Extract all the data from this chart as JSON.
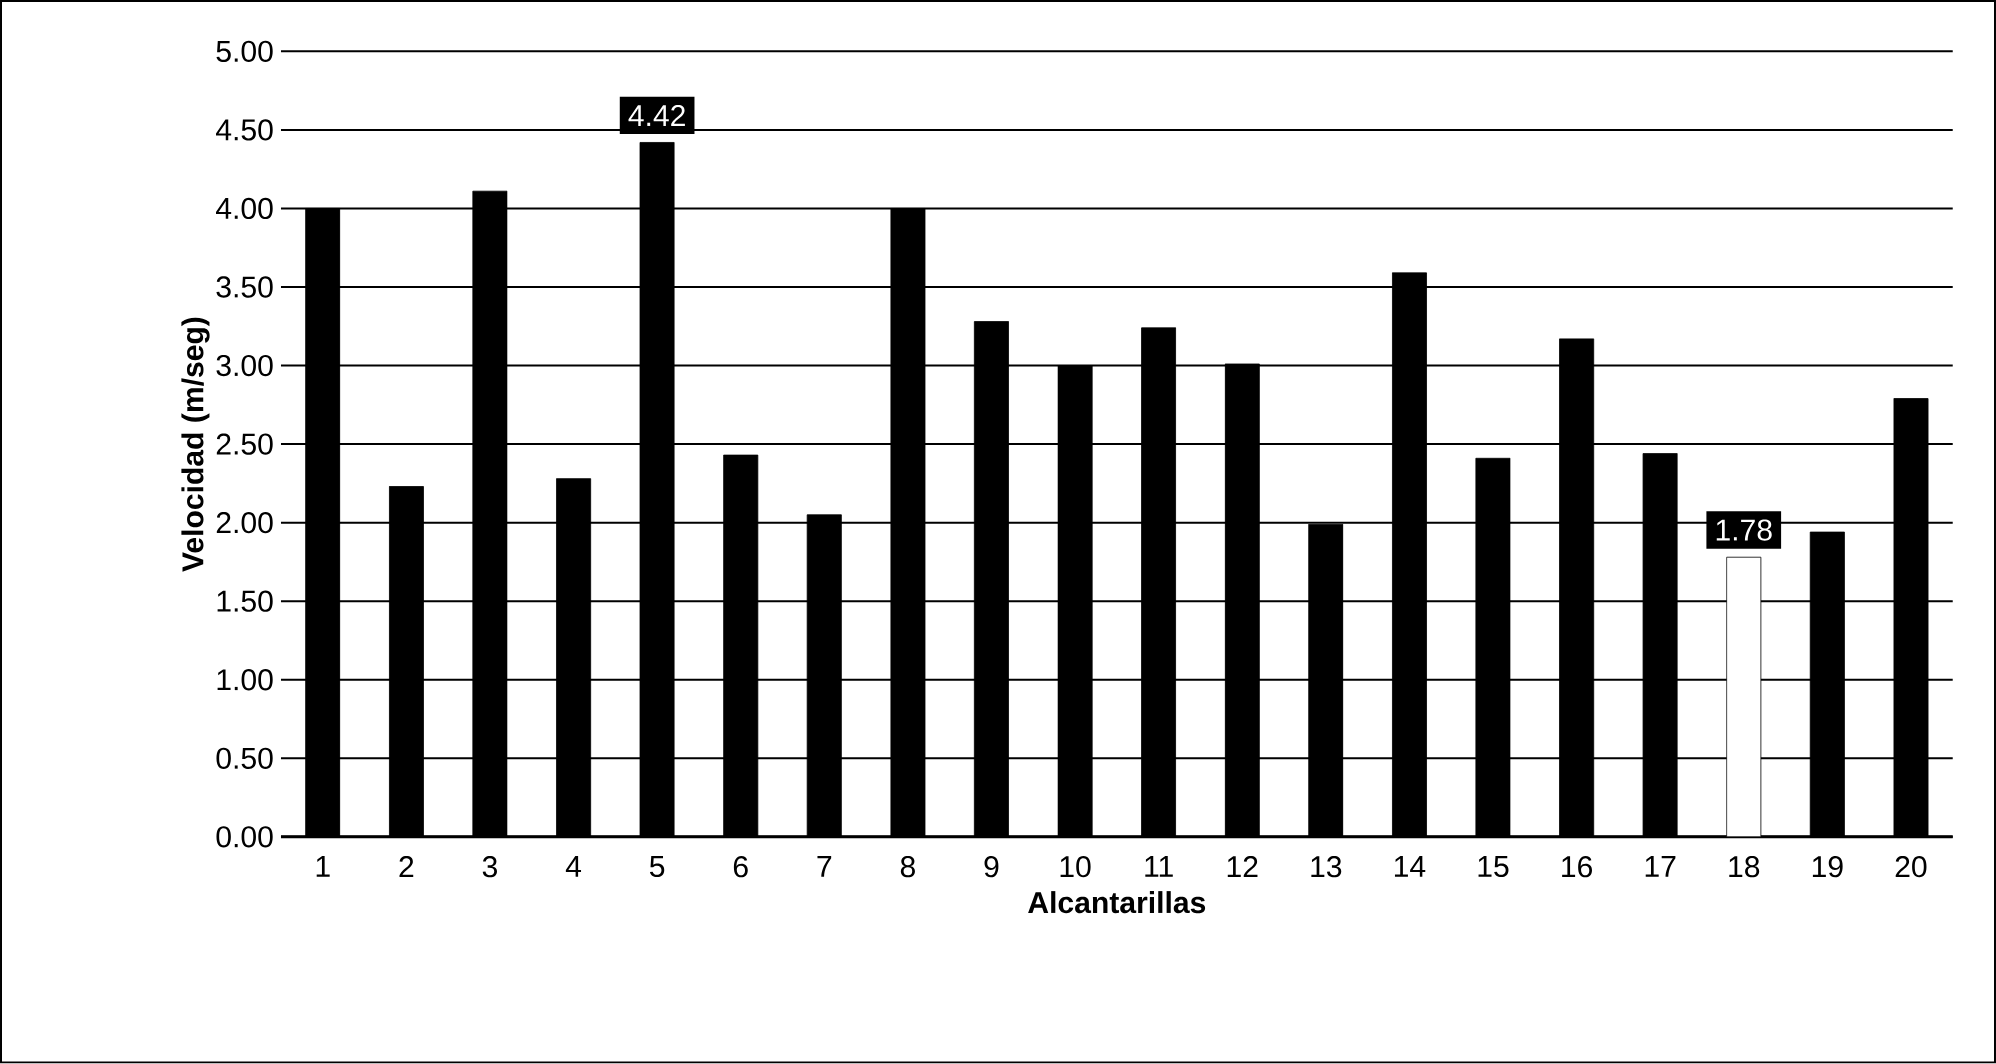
{
  "chart_data": {
    "type": "bar",
    "xlabel": "Alcantarillas",
    "ylabel": "Velocidad (m/seg)",
    "categories": [
      "1",
      "2",
      "3",
      "4",
      "5",
      "6",
      "7",
      "8",
      "9",
      "10",
      "11",
      "12",
      "13",
      "14",
      "15",
      "16",
      "17",
      "18",
      "19",
      "20"
    ],
    "values": [
      4.0,
      2.23,
      4.11,
      2.28,
      4.42,
      2.43,
      2.05,
      4.0,
      3.28,
      3.0,
      3.24,
      3.01,
      1.99,
      3.59,
      2.41,
      3.17,
      2.44,
      1.78,
      1.94,
      2.79
    ],
    "colors": [
      "#000000",
      "#000000",
      "#000000",
      "#000000",
      "#000000",
      "#000000",
      "#000000",
      "#000000",
      "#000000",
      "#000000",
      "#000000",
      "#000000",
      "#000000",
      "#000000",
      "#000000",
      "#000000",
      "#000000",
      "#ffffff",
      "#000000",
      "#000000"
    ],
    "value_labels": [
      null,
      null,
      null,
      null,
      "4.42",
      null,
      null,
      null,
      null,
      null,
      null,
      null,
      null,
      null,
      null,
      null,
      null,
      "1.78",
      null,
      null
    ],
    "ylim": [
      0,
      5
    ],
    "yticks": [
      {
        "value": 0,
        "label": "0.00"
      },
      {
        "value": 0.5,
        "label": "0.50"
      },
      {
        "value": 1,
        "label": "1.00"
      },
      {
        "value": 1.5,
        "label": "1.50"
      },
      {
        "value": 2,
        "label": "2.00"
      },
      {
        "value": 2.5,
        "label": "2.50"
      },
      {
        "value": 3,
        "label": "3.00"
      },
      {
        "value": 3.5,
        "label": "3.50"
      },
      {
        "value": 4,
        "label": "4.00"
      },
      {
        "value": 4.5,
        "label": "4.50"
      },
      {
        "value": 5,
        "label": "5.00"
      }
    ],
    "grid": "y"
  }
}
